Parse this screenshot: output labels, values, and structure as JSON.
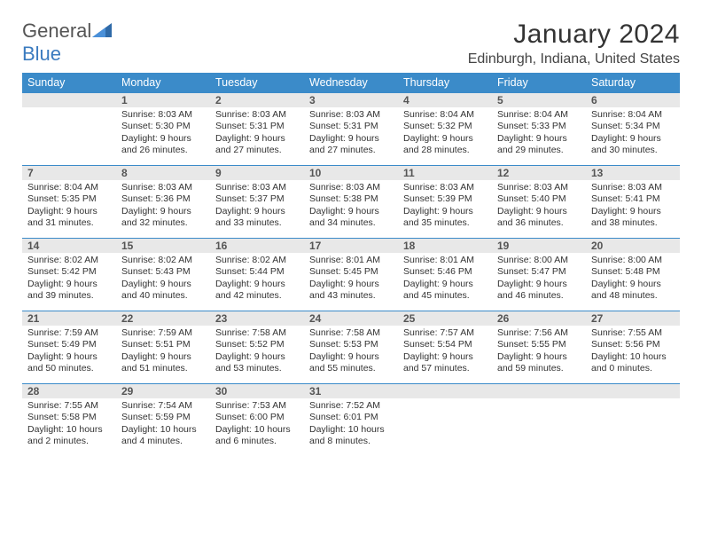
{
  "brand": {
    "text1": "General",
    "text2": "Blue"
  },
  "title": "January 2024",
  "location": "Edinburgh, Indiana, United States",
  "colors": {
    "header_bg": "#3b8bc9",
    "header_fg": "#ffffff",
    "daybar_bg": "#e8e8e8",
    "daybar_border": "#3b8bc9",
    "text": "#333333",
    "brand_grey": "#555555",
    "brand_blue": "#3b7bbf"
  },
  "weekdays": [
    "Sunday",
    "Monday",
    "Tuesday",
    "Wednesday",
    "Thursday",
    "Friday",
    "Saturday"
  ],
  "weeks": [
    [
      {
        "n": "",
        "sr": "",
        "ss": "",
        "dl": ""
      },
      {
        "n": "1",
        "sr": "Sunrise: 8:03 AM",
        "ss": "Sunset: 5:30 PM",
        "dl": "Daylight: 9 hours and 26 minutes."
      },
      {
        "n": "2",
        "sr": "Sunrise: 8:03 AM",
        "ss": "Sunset: 5:31 PM",
        "dl": "Daylight: 9 hours and 27 minutes."
      },
      {
        "n": "3",
        "sr": "Sunrise: 8:03 AM",
        "ss": "Sunset: 5:31 PM",
        "dl": "Daylight: 9 hours and 27 minutes."
      },
      {
        "n": "4",
        "sr": "Sunrise: 8:04 AM",
        "ss": "Sunset: 5:32 PM",
        "dl": "Daylight: 9 hours and 28 minutes."
      },
      {
        "n": "5",
        "sr": "Sunrise: 8:04 AM",
        "ss": "Sunset: 5:33 PM",
        "dl": "Daylight: 9 hours and 29 minutes."
      },
      {
        "n": "6",
        "sr": "Sunrise: 8:04 AM",
        "ss": "Sunset: 5:34 PM",
        "dl": "Daylight: 9 hours and 30 minutes."
      }
    ],
    [
      {
        "n": "7",
        "sr": "Sunrise: 8:04 AM",
        "ss": "Sunset: 5:35 PM",
        "dl": "Daylight: 9 hours and 31 minutes."
      },
      {
        "n": "8",
        "sr": "Sunrise: 8:03 AM",
        "ss": "Sunset: 5:36 PM",
        "dl": "Daylight: 9 hours and 32 minutes."
      },
      {
        "n": "9",
        "sr": "Sunrise: 8:03 AM",
        "ss": "Sunset: 5:37 PM",
        "dl": "Daylight: 9 hours and 33 minutes."
      },
      {
        "n": "10",
        "sr": "Sunrise: 8:03 AM",
        "ss": "Sunset: 5:38 PM",
        "dl": "Daylight: 9 hours and 34 minutes."
      },
      {
        "n": "11",
        "sr": "Sunrise: 8:03 AM",
        "ss": "Sunset: 5:39 PM",
        "dl": "Daylight: 9 hours and 35 minutes."
      },
      {
        "n": "12",
        "sr": "Sunrise: 8:03 AM",
        "ss": "Sunset: 5:40 PM",
        "dl": "Daylight: 9 hours and 36 minutes."
      },
      {
        "n": "13",
        "sr": "Sunrise: 8:03 AM",
        "ss": "Sunset: 5:41 PM",
        "dl": "Daylight: 9 hours and 38 minutes."
      }
    ],
    [
      {
        "n": "14",
        "sr": "Sunrise: 8:02 AM",
        "ss": "Sunset: 5:42 PM",
        "dl": "Daylight: 9 hours and 39 minutes."
      },
      {
        "n": "15",
        "sr": "Sunrise: 8:02 AM",
        "ss": "Sunset: 5:43 PM",
        "dl": "Daylight: 9 hours and 40 minutes."
      },
      {
        "n": "16",
        "sr": "Sunrise: 8:02 AM",
        "ss": "Sunset: 5:44 PM",
        "dl": "Daylight: 9 hours and 42 minutes."
      },
      {
        "n": "17",
        "sr": "Sunrise: 8:01 AM",
        "ss": "Sunset: 5:45 PM",
        "dl": "Daylight: 9 hours and 43 minutes."
      },
      {
        "n": "18",
        "sr": "Sunrise: 8:01 AM",
        "ss": "Sunset: 5:46 PM",
        "dl": "Daylight: 9 hours and 45 minutes."
      },
      {
        "n": "19",
        "sr": "Sunrise: 8:00 AM",
        "ss": "Sunset: 5:47 PM",
        "dl": "Daylight: 9 hours and 46 minutes."
      },
      {
        "n": "20",
        "sr": "Sunrise: 8:00 AM",
        "ss": "Sunset: 5:48 PM",
        "dl": "Daylight: 9 hours and 48 minutes."
      }
    ],
    [
      {
        "n": "21",
        "sr": "Sunrise: 7:59 AM",
        "ss": "Sunset: 5:49 PM",
        "dl": "Daylight: 9 hours and 50 minutes."
      },
      {
        "n": "22",
        "sr": "Sunrise: 7:59 AM",
        "ss": "Sunset: 5:51 PM",
        "dl": "Daylight: 9 hours and 51 minutes."
      },
      {
        "n": "23",
        "sr": "Sunrise: 7:58 AM",
        "ss": "Sunset: 5:52 PM",
        "dl": "Daylight: 9 hours and 53 minutes."
      },
      {
        "n": "24",
        "sr": "Sunrise: 7:58 AM",
        "ss": "Sunset: 5:53 PM",
        "dl": "Daylight: 9 hours and 55 minutes."
      },
      {
        "n": "25",
        "sr": "Sunrise: 7:57 AM",
        "ss": "Sunset: 5:54 PM",
        "dl": "Daylight: 9 hours and 57 minutes."
      },
      {
        "n": "26",
        "sr": "Sunrise: 7:56 AM",
        "ss": "Sunset: 5:55 PM",
        "dl": "Daylight: 9 hours and 59 minutes."
      },
      {
        "n": "27",
        "sr": "Sunrise: 7:55 AM",
        "ss": "Sunset: 5:56 PM",
        "dl": "Daylight: 10 hours and 0 minutes."
      }
    ],
    [
      {
        "n": "28",
        "sr": "Sunrise: 7:55 AM",
        "ss": "Sunset: 5:58 PM",
        "dl": "Daylight: 10 hours and 2 minutes."
      },
      {
        "n": "29",
        "sr": "Sunrise: 7:54 AM",
        "ss": "Sunset: 5:59 PM",
        "dl": "Daylight: 10 hours and 4 minutes."
      },
      {
        "n": "30",
        "sr": "Sunrise: 7:53 AM",
        "ss": "Sunset: 6:00 PM",
        "dl": "Daylight: 10 hours and 6 minutes."
      },
      {
        "n": "31",
        "sr": "Sunrise: 7:52 AM",
        "ss": "Sunset: 6:01 PM",
        "dl": "Daylight: 10 hours and 8 minutes."
      },
      {
        "n": "",
        "sr": "",
        "ss": "",
        "dl": ""
      },
      {
        "n": "",
        "sr": "",
        "ss": "",
        "dl": ""
      },
      {
        "n": "",
        "sr": "",
        "ss": "",
        "dl": ""
      }
    ]
  ]
}
